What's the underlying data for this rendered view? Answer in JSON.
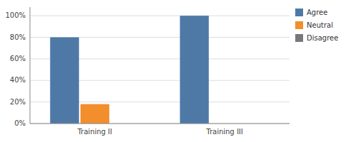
{
  "chart_data": {
    "type": "bar",
    "categories": [
      "Training II",
      "Training III"
    ],
    "series": [
      {
        "name": "Agree",
        "values": [
          0.8,
          1.0
        ]
      },
      {
        "name": "Neutral",
        "values": [
          0.18,
          0.0
        ]
      },
      {
        "name": "Disagree",
        "values": [
          0.0,
          0.0
        ]
      }
    ],
    "ylim": [
      0,
      1.08
    ],
    "yticks": [
      {
        "value": 0,
        "label": "0%"
      },
      {
        "value": 0.2,
        "label": "20%"
      },
      {
        "value": 0.4,
        "label": "40%"
      },
      {
        "value": 0.6,
        "label": "60%"
      },
      {
        "value": 0.8,
        "label": "80%"
      },
      {
        "value": 1.0,
        "label": "100%"
      }
    ],
    "grid": true,
    "legend": "upper right"
  }
}
